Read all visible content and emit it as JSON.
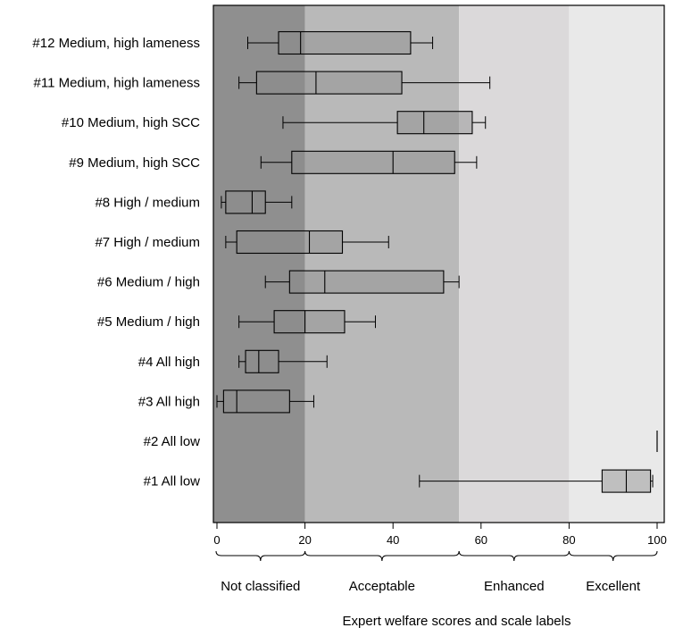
{
  "chart_data": {
    "type": "boxplot",
    "orientation": "horizontal",
    "xlabel": "Expert welfare scores and scale labels",
    "xlim": [
      0,
      100
    ],
    "xticks": [
      0,
      20,
      40,
      60,
      80,
      100
    ],
    "band_labels": [
      {
        "label": "Not classified",
        "from": 0,
        "to": 20,
        "color": "#8f8f8f"
      },
      {
        "label": "Acceptable",
        "from": 20,
        "to": 55,
        "color": "#b9b9b9"
      },
      {
        "label": "Enhanced",
        "from": 55,
        "to": 80,
        "color": "#dbd9da"
      },
      {
        "label": "Excellent",
        "from": 80,
        "to": 100,
        "color": "#e9e9e9"
      }
    ],
    "categories": [
      "#12 Medium, high lameness",
      "#11 Medium, high lameness",
      "#10 Medium, high SCC",
      "#9 Medium, high SCC",
      "#8 High / medium",
      "#7 High / medium",
      "#6 Medium / high",
      "#5 Medium / high",
      "#4 All high",
      "#3 All high",
      "#2 All low",
      "#1 All low"
    ],
    "boxes": [
      {
        "min": 7,
        "q1": 14,
        "median": 19,
        "q3": 44,
        "max": 49
      },
      {
        "min": 5,
        "q1": 9,
        "median": 22.5,
        "q3": 42,
        "max": 62
      },
      {
        "min": 15,
        "q1": 41,
        "median": 47,
        "q3": 58,
        "max": 61
      },
      {
        "min": 10,
        "q1": 17,
        "median": 40,
        "q3": 54,
        "max": 59
      },
      {
        "min": 1,
        "q1": 2,
        "median": 8,
        "q3": 11,
        "max": 17
      },
      {
        "min": 2,
        "q1": 4.5,
        "median": 21,
        "q3": 28.5,
        "max": 39
      },
      {
        "min": 11,
        "q1": 16.5,
        "median": 24.5,
        "q3": 51.5,
        "max": 55
      },
      {
        "min": 5,
        "q1": 13,
        "median": 20,
        "q3": 29,
        "max": 36
      },
      {
        "min": 5,
        "q1": 6.5,
        "median": 9.5,
        "q3": 14,
        "max": 25
      },
      {
        "min": 0,
        "q1": 1.5,
        "median": 4.5,
        "q3": 16.5,
        "max": 22
      },
      {
        "min": 100,
        "q1": 100,
        "median": 100,
        "q3": 100,
        "max": 100
      },
      {
        "min": 46,
        "q1": 87.5,
        "median": 93,
        "q3": 98.5,
        "max": 99
      }
    ]
  }
}
